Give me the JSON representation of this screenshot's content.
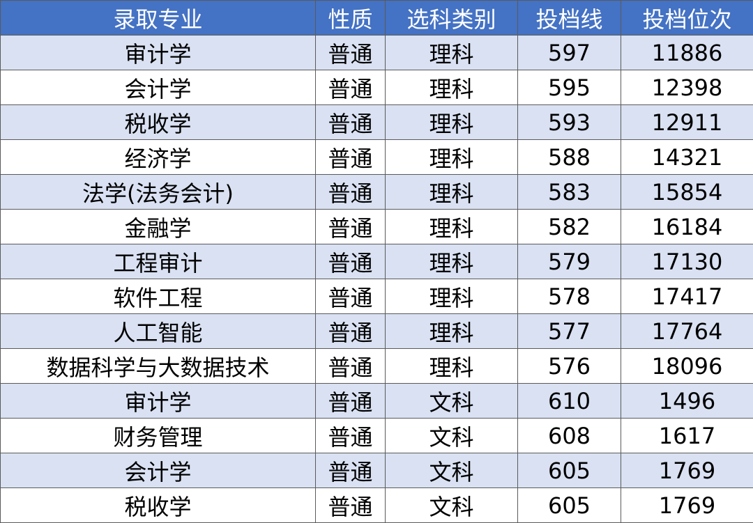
{
  "colors": {
    "header_bg": "#4472C4",
    "header_text": "#FFFFFF",
    "row_alt_bg": "#D9E1F2",
    "row_bg": "#FFFFFF"
  },
  "table": {
    "headers": [
      "录取专业",
      "性质",
      "选科类别",
      "投档线",
      "投档位次"
    ],
    "rows": [
      [
        "审计学",
        "普通",
        "理科",
        "597",
        "11886"
      ],
      [
        "会计学",
        "普通",
        "理科",
        "595",
        "12398"
      ],
      [
        "税收学",
        "普通",
        "理科",
        "593",
        "12911"
      ],
      [
        "经济学",
        "普通",
        "理科",
        "588",
        "14321"
      ],
      [
        "法学(法务会计)",
        "普通",
        "理科",
        "583",
        "15854"
      ],
      [
        "金融学",
        "普通",
        "理科",
        "582",
        "16184"
      ],
      [
        "工程审计",
        "普通",
        "理科",
        "579",
        "17130"
      ],
      [
        "软件工程",
        "普通",
        "理科",
        "578",
        "17417"
      ],
      [
        "人工智能",
        "普通",
        "理科",
        "577",
        "17764"
      ],
      [
        "数据科学与大数据技术",
        "普通",
        "理科",
        "576",
        "18096"
      ],
      [
        "审计学",
        "普通",
        "文科",
        "610",
        "1496"
      ],
      [
        "财务管理",
        "普通",
        "文科",
        "608",
        "1617"
      ],
      [
        "会计学",
        "普通",
        "文科",
        "605",
        "1769"
      ],
      [
        "税收学",
        "普通",
        "文科",
        "605",
        "1769"
      ]
    ]
  }
}
